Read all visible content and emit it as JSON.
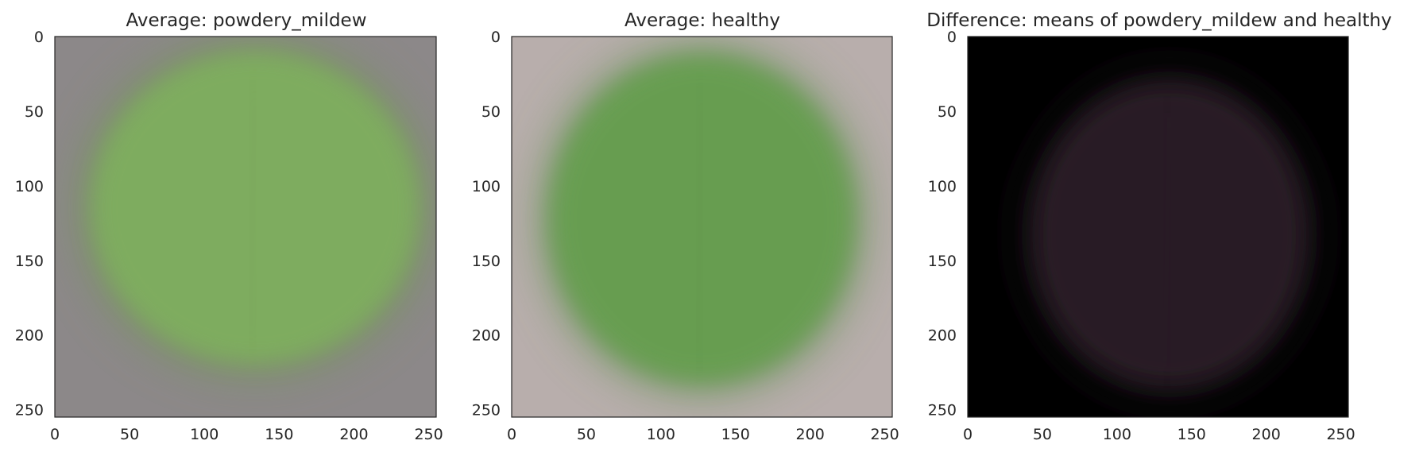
{
  "panels": [
    {
      "title": "Average: powdery_mildew",
      "background_color": "#8c8889",
      "leaf_color": "#7fae5e",
      "leaf_edge_color": "#6f9650"
    },
    {
      "title": "Average: healthy",
      "background_color": "#b8aeac",
      "leaf_color": "#669e50",
      "leaf_edge_color": "#5a8c48"
    },
    {
      "title": "Difference: means of powdery_mildew and healthy",
      "background_color": "#000000",
      "leaf_color": "#2a1f26",
      "leaf_edge_color": "#241b20"
    }
  ],
  "axes": {
    "x_ticks": [
      "0",
      "50",
      "100",
      "150",
      "200",
      "250"
    ],
    "y_ticks": [
      "0",
      "50",
      "100",
      "150",
      "200",
      "250"
    ],
    "x_range": [
      0,
      255
    ],
    "y_range": [
      0,
      255
    ],
    "y_inverted": true,
    "grid": false
  }
}
